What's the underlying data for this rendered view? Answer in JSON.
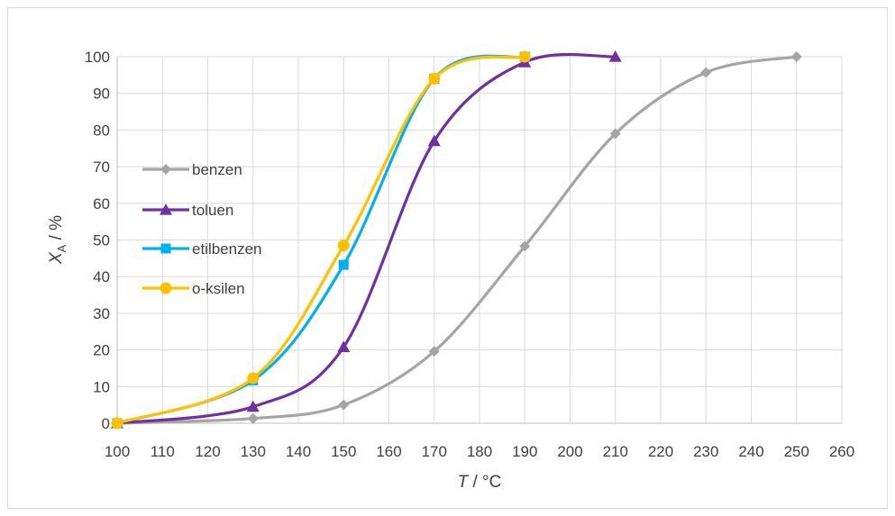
{
  "chart_data": {
    "type": "line",
    "title": "",
    "xlabel_var": "T",
    "xlabel_unit": " / °C",
    "ylabel_var": "X",
    "ylabel_sub": "A",
    "ylabel_unit": " / %",
    "xlim": [
      100,
      260
    ],
    "ylim": [
      0,
      100
    ],
    "xticks": [
      "100",
      "110",
      "120",
      "130",
      "140",
      "150",
      "160",
      "170",
      "180",
      "190",
      "200",
      "210",
      "220",
      "230",
      "240",
      "250",
      "260"
    ],
    "yticks": [
      "0",
      "10",
      "20",
      "30",
      "40",
      "50",
      "60",
      "70",
      "80",
      "90",
      "100"
    ],
    "grid": true,
    "legend_position": "center-left",
    "series": [
      {
        "name": "benzen",
        "color": "#a5a5a5",
        "marker": "diamond",
        "x": [
          100,
          130,
          150,
          170,
          190,
          210,
          230,
          250
        ],
        "y": [
          0,
          1.3,
          5,
          19.6,
          48.3,
          79,
          95.7,
          100
        ]
      },
      {
        "name": "toluen",
        "color": "#7030a0",
        "marker": "triangle",
        "x": [
          100,
          130,
          150,
          170,
          190,
          210
        ],
        "y": [
          0,
          4.5,
          20.8,
          77,
          98.5,
          100
        ]
      },
      {
        "name": "etilbenzen",
        "color": "#00b0f0",
        "marker": "square",
        "x": [
          100,
          130,
          150,
          170,
          190
        ],
        "y": [
          0,
          11.7,
          43.2,
          94,
          100
        ]
      },
      {
        "name": "o-ksilen",
        "color": "#ffc000",
        "marker": "circle",
        "x": [
          100,
          130,
          150,
          170,
          190
        ],
        "y": [
          0,
          12.3,
          48.5,
          94,
          100
        ]
      }
    ]
  }
}
